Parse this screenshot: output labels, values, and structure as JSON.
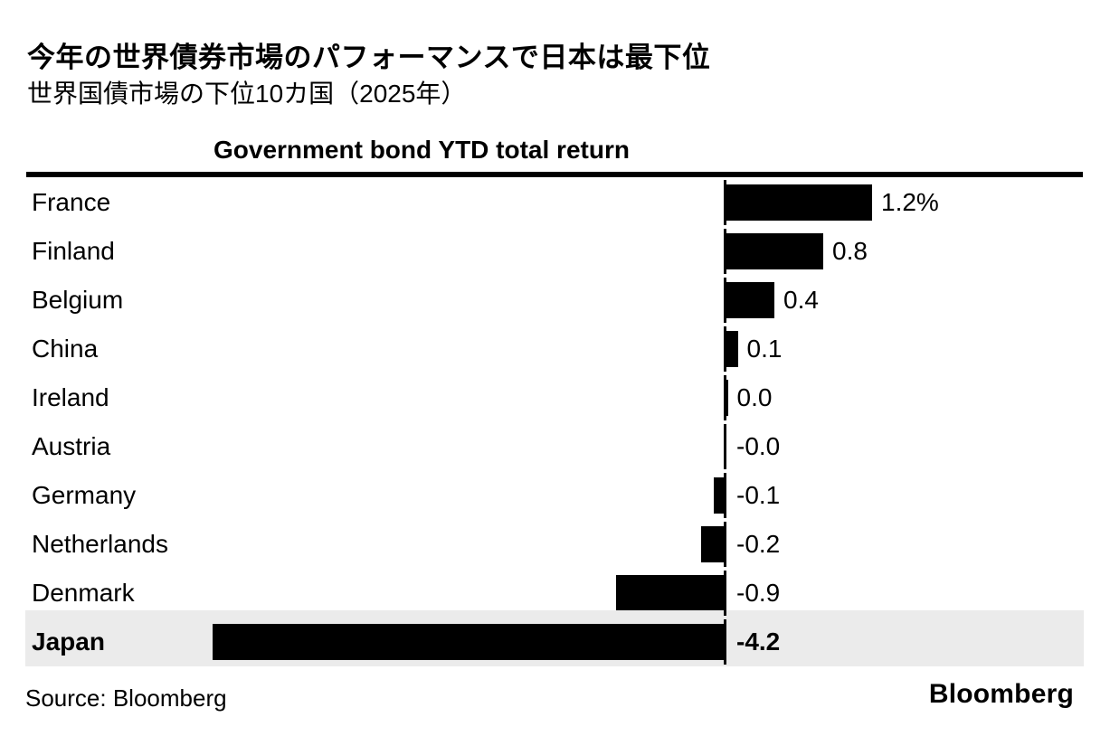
{
  "header": {
    "title": "今年の世界債券市場のパフォーマンスで日本は最下位",
    "subtitle": "世界国債市場の下位10カ国（2025年）"
  },
  "chart_data": {
    "type": "bar",
    "orientation": "horizontal",
    "title": "Government bond YTD total return",
    "unit": "%",
    "categories": [
      "France",
      "Finland",
      "Belgium",
      "China",
      "Ireland",
      "Austria",
      "Germany",
      "Netherlands",
      "Denmark",
      "Japan"
    ],
    "values": [
      1.2,
      0.8,
      0.4,
      0.1,
      0.0,
      -0.0,
      -0.1,
      -0.2,
      -0.9,
      -4.2
    ],
    "value_labels": [
      "1.2%",
      "0.8",
      "0.4",
      "0.1",
      "0.0",
      "-0.0",
      "-0.1",
      "-0.2",
      "-0.9",
      "-4.2"
    ],
    "highlighted_category": "Japan",
    "baseline": 0,
    "axis_range": [
      -4.4,
      3.1
    ],
    "grid": false,
    "legend": "none",
    "bar_color": "#000000",
    "highlight_row_bg": "#ebebeb",
    "rule_color": "#000000"
  },
  "footer": {
    "source": "Source: Bloomberg",
    "brand": "Bloomberg"
  }
}
